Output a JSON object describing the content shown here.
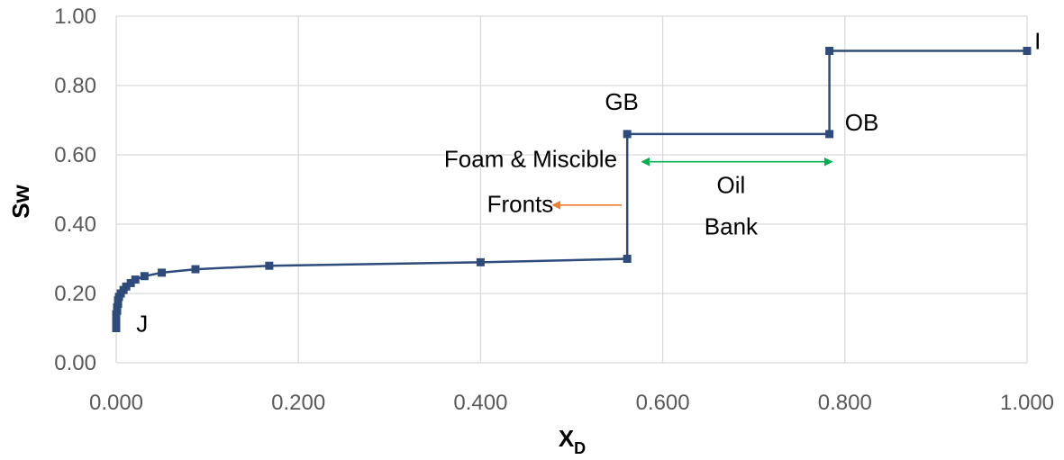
{
  "chart_data": {
    "type": "line",
    "xlabel": "X",
    "xlabel_sub": "D",
    "ylabel": "Sw",
    "xlim": [
      0,
      1
    ],
    "ylim": [
      0,
      1
    ],
    "grid": true,
    "x_ticks": [
      "0.000",
      "0.200",
      "0.400",
      "0.600",
      "0.800",
      "1.000"
    ],
    "y_ticks": [
      "0.00",
      "0.20",
      "0.40",
      "0.60",
      "0.80",
      "1.00"
    ],
    "series": [
      {
        "color": "#2f4b7c",
        "marker": "square",
        "points": [
          [
            0.0,
            0.1
          ],
          [
            0.0,
            0.11
          ],
          [
            0.0,
            0.12
          ],
          [
            0.0,
            0.13
          ],
          [
            0.0,
            0.14
          ],
          [
            0.001,
            0.15
          ],
          [
            0.001,
            0.16
          ],
          [
            0.002,
            0.17
          ],
          [
            0.002,
            0.18
          ],
          [
            0.003,
            0.19
          ],
          [
            0.005,
            0.2
          ],
          [
            0.008,
            0.21
          ],
          [
            0.011,
            0.22
          ],
          [
            0.016,
            0.23
          ],
          [
            0.021,
            0.24
          ],
          [
            0.031,
            0.25
          ],
          [
            0.05,
            0.26
          ],
          [
            0.087,
            0.27
          ],
          [
            0.168,
            0.28
          ],
          [
            0.4,
            0.29
          ],
          [
            0.561,
            0.3
          ],
          [
            0.561,
            0.66
          ],
          [
            0.783,
            0.66
          ],
          [
            0.783,
            0.9
          ],
          [
            1.0,
            0.9
          ]
        ]
      }
    ],
    "annotations": [
      {
        "text": "J",
        "x": 0.022,
        "y": 0.09
      },
      {
        "text": "GB",
        "x": 0.555,
        "y": 0.73
      },
      {
        "text": "OB",
        "x": 0.8,
        "y": 0.67
      },
      {
        "text": "I",
        "x": 1.008,
        "y": 0.905
      },
      {
        "text": "Foam & Miscible",
        "x": 0.55,
        "y": 0.565
      },
      {
        "text": "Fronts",
        "x": 0.48,
        "y": 0.435
      },
      {
        "text": "Oil",
        "x": 0.675,
        "y": 0.49
      },
      {
        "text": "Bank",
        "x": 0.675,
        "y": 0.37
      }
    ],
    "arrows": [
      {
        "name": "fronts-arrow",
        "color": "#ed7d31",
        "from": [
          0.555,
          0.455
        ],
        "to": [
          0.48,
          0.455
        ],
        "heads": "end"
      },
      {
        "name": "oil-bank-arrow",
        "color": "#00b050",
        "from": [
          0.578,
          0.58
        ],
        "to": [
          0.785,
          0.58
        ],
        "heads": "both"
      }
    ]
  }
}
